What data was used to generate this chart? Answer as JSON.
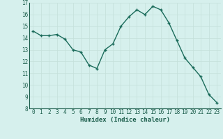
{
  "x": [
    0,
    1,
    2,
    3,
    4,
    5,
    6,
    7,
    8,
    9,
    10,
    11,
    12,
    13,
    14,
    15,
    16,
    17,
    18,
    19,
    20,
    21,
    22,
    23
  ],
  "y": [
    14.6,
    14.2,
    14.2,
    14.3,
    13.9,
    13.0,
    12.8,
    11.7,
    11.4,
    13.0,
    13.5,
    15.0,
    15.8,
    16.4,
    16.0,
    16.7,
    16.4,
    15.3,
    13.8,
    12.3,
    11.5,
    10.7,
    9.2,
    8.5
  ],
  "xlabel": "Humidex (Indice chaleur)",
  "ylim": [
    8,
    17
  ],
  "xlim": [
    -0.5,
    23.5
  ],
  "yticks": [
    8,
    9,
    10,
    11,
    12,
    13,
    14,
    15,
    16,
    17
  ],
  "xticks": [
    0,
    1,
    2,
    3,
    4,
    5,
    6,
    7,
    8,
    9,
    10,
    11,
    12,
    13,
    14,
    15,
    16,
    17,
    18,
    19,
    20,
    21,
    22,
    23
  ],
  "line_color": "#1a6b5a",
  "marker_color": "#1a6b5a",
  "bg_color": "#d6f0ed",
  "grid_color": "#c4e0da",
  "text_color": "#1a5c4a",
  "xlabel_color": "#1a5c4a",
  "tick_label_fontsize": 5.5,
  "xlabel_fontsize": 6.5,
  "linewidth": 1.0,
  "markersize": 3.0
}
